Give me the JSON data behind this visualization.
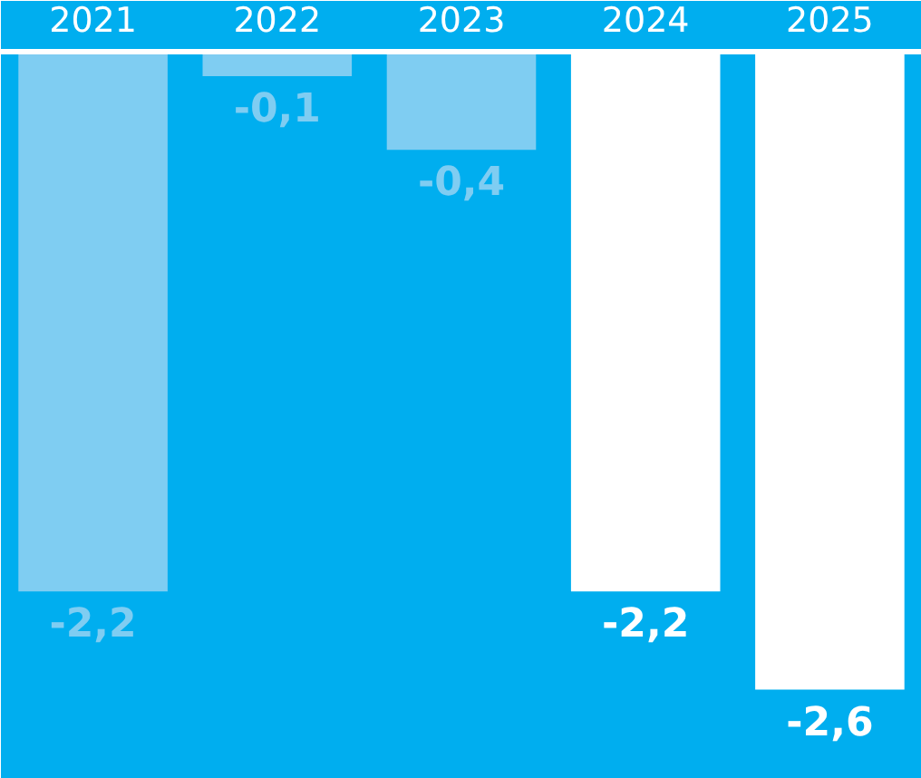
{
  "chart_data": {
    "type": "bar",
    "categories": [
      "2021",
      "2022",
      "2023",
      "2024",
      "2025"
    ],
    "values": [
      -2.2,
      -0.1,
      -0.4,
      -2.2,
      -2.6
    ],
    "colors": [
      "#7fcdf2",
      "#7fcdf2",
      "#7fcdf2",
      "#ffffff",
      "#ffffff"
    ],
    "value_labels": [
      "-2,2",
      "-0,1",
      "-0,4",
      "-2,2",
      "-2,6"
    ],
    "grid": false
  }
}
